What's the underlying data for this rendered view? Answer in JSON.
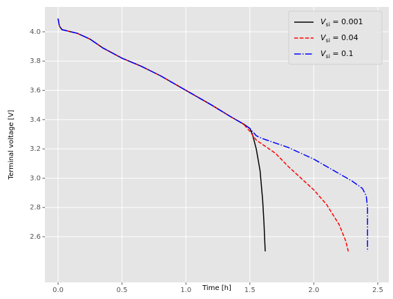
{
  "chart_data": {
    "type": "line",
    "xlabel": "Time [h]",
    "ylabel": "Terminal voltage [V]",
    "xlim": [
      -0.103,
      2.587
    ],
    "ylim": [
      2.288,
      4.17
    ],
    "xticks": [
      {
        "value": 0,
        "label": "0.0"
      },
      0.5,
      {
        "value": 1,
        "label": "1.0"
      },
      1.5,
      {
        "value": 2,
        "label": "2.0"
      },
      2.5
    ],
    "yticks": [
      2.6,
      2.8,
      {
        "value": 3,
        "label": "3.0"
      },
      3.2,
      3.4,
      3.6,
      3.8,
      {
        "value": 4,
        "label": "4.0"
      }
    ],
    "grid": true,
    "legend": "upper right",
    "background": "#e5e5e5",
    "series": [
      {
        "name": "Vsi = 0.001",
        "color": "#000000",
        "linestyle": "solid",
        "x": [
          0,
          0.01,
          0.03,
          0.1,
          0.15,
          0.25,
          0.35,
          0.5,
          0.65,
          0.8,
          1.0,
          1.2,
          1.35,
          1.45,
          1.5,
          1.52,
          1.55,
          1.58,
          1.6,
          1.61,
          1.62
        ],
        "values": [
          4.09,
          4.04,
          4.015,
          4.0,
          3.99,
          3.95,
          3.89,
          3.82,
          3.765,
          3.7,
          3.6,
          3.5,
          3.42,
          3.37,
          3.34,
          3.3,
          3.2,
          3.05,
          2.85,
          2.7,
          2.5
        ]
      },
      {
        "name": "Vsi = 0.04",
        "color": "#ff0000",
        "linestyle": "dashed",
        "x": [
          0,
          0.01,
          0.03,
          0.1,
          0.15,
          0.25,
          0.35,
          0.5,
          0.65,
          0.8,
          1.0,
          1.2,
          1.35,
          1.45,
          1.5,
          1.55,
          1.6,
          1.7,
          1.8,
          1.9,
          2.0,
          2.1,
          2.2,
          2.25,
          2.27
        ],
        "values": [
          4.09,
          4.04,
          4.015,
          4.0,
          3.99,
          3.95,
          3.89,
          3.82,
          3.765,
          3.7,
          3.6,
          3.5,
          3.42,
          3.37,
          3.32,
          3.26,
          3.23,
          3.17,
          3.08,
          3.0,
          2.92,
          2.82,
          2.68,
          2.57,
          2.5
        ]
      },
      {
        "name": "Vsi = 0.1",
        "color": "#0000ff",
        "linestyle": "dashdot",
        "x": [
          0,
          0.01,
          0.03,
          0.1,
          0.15,
          0.25,
          0.35,
          0.5,
          0.65,
          0.8,
          1.0,
          1.2,
          1.35,
          1.45,
          1.5,
          1.55,
          1.6,
          1.7,
          1.8,
          1.9,
          2.0,
          2.1,
          2.2,
          2.3,
          2.38,
          2.41,
          2.42,
          2.42
        ],
        "values": [
          4.09,
          4.04,
          4.015,
          4.0,
          3.99,
          3.95,
          3.89,
          3.82,
          3.765,
          3.7,
          3.6,
          3.5,
          3.42,
          3.37,
          3.34,
          3.29,
          3.27,
          3.24,
          3.21,
          3.17,
          3.13,
          3.08,
          3.03,
          2.98,
          2.93,
          2.88,
          2.8,
          2.5
        ]
      }
    ]
  }
}
